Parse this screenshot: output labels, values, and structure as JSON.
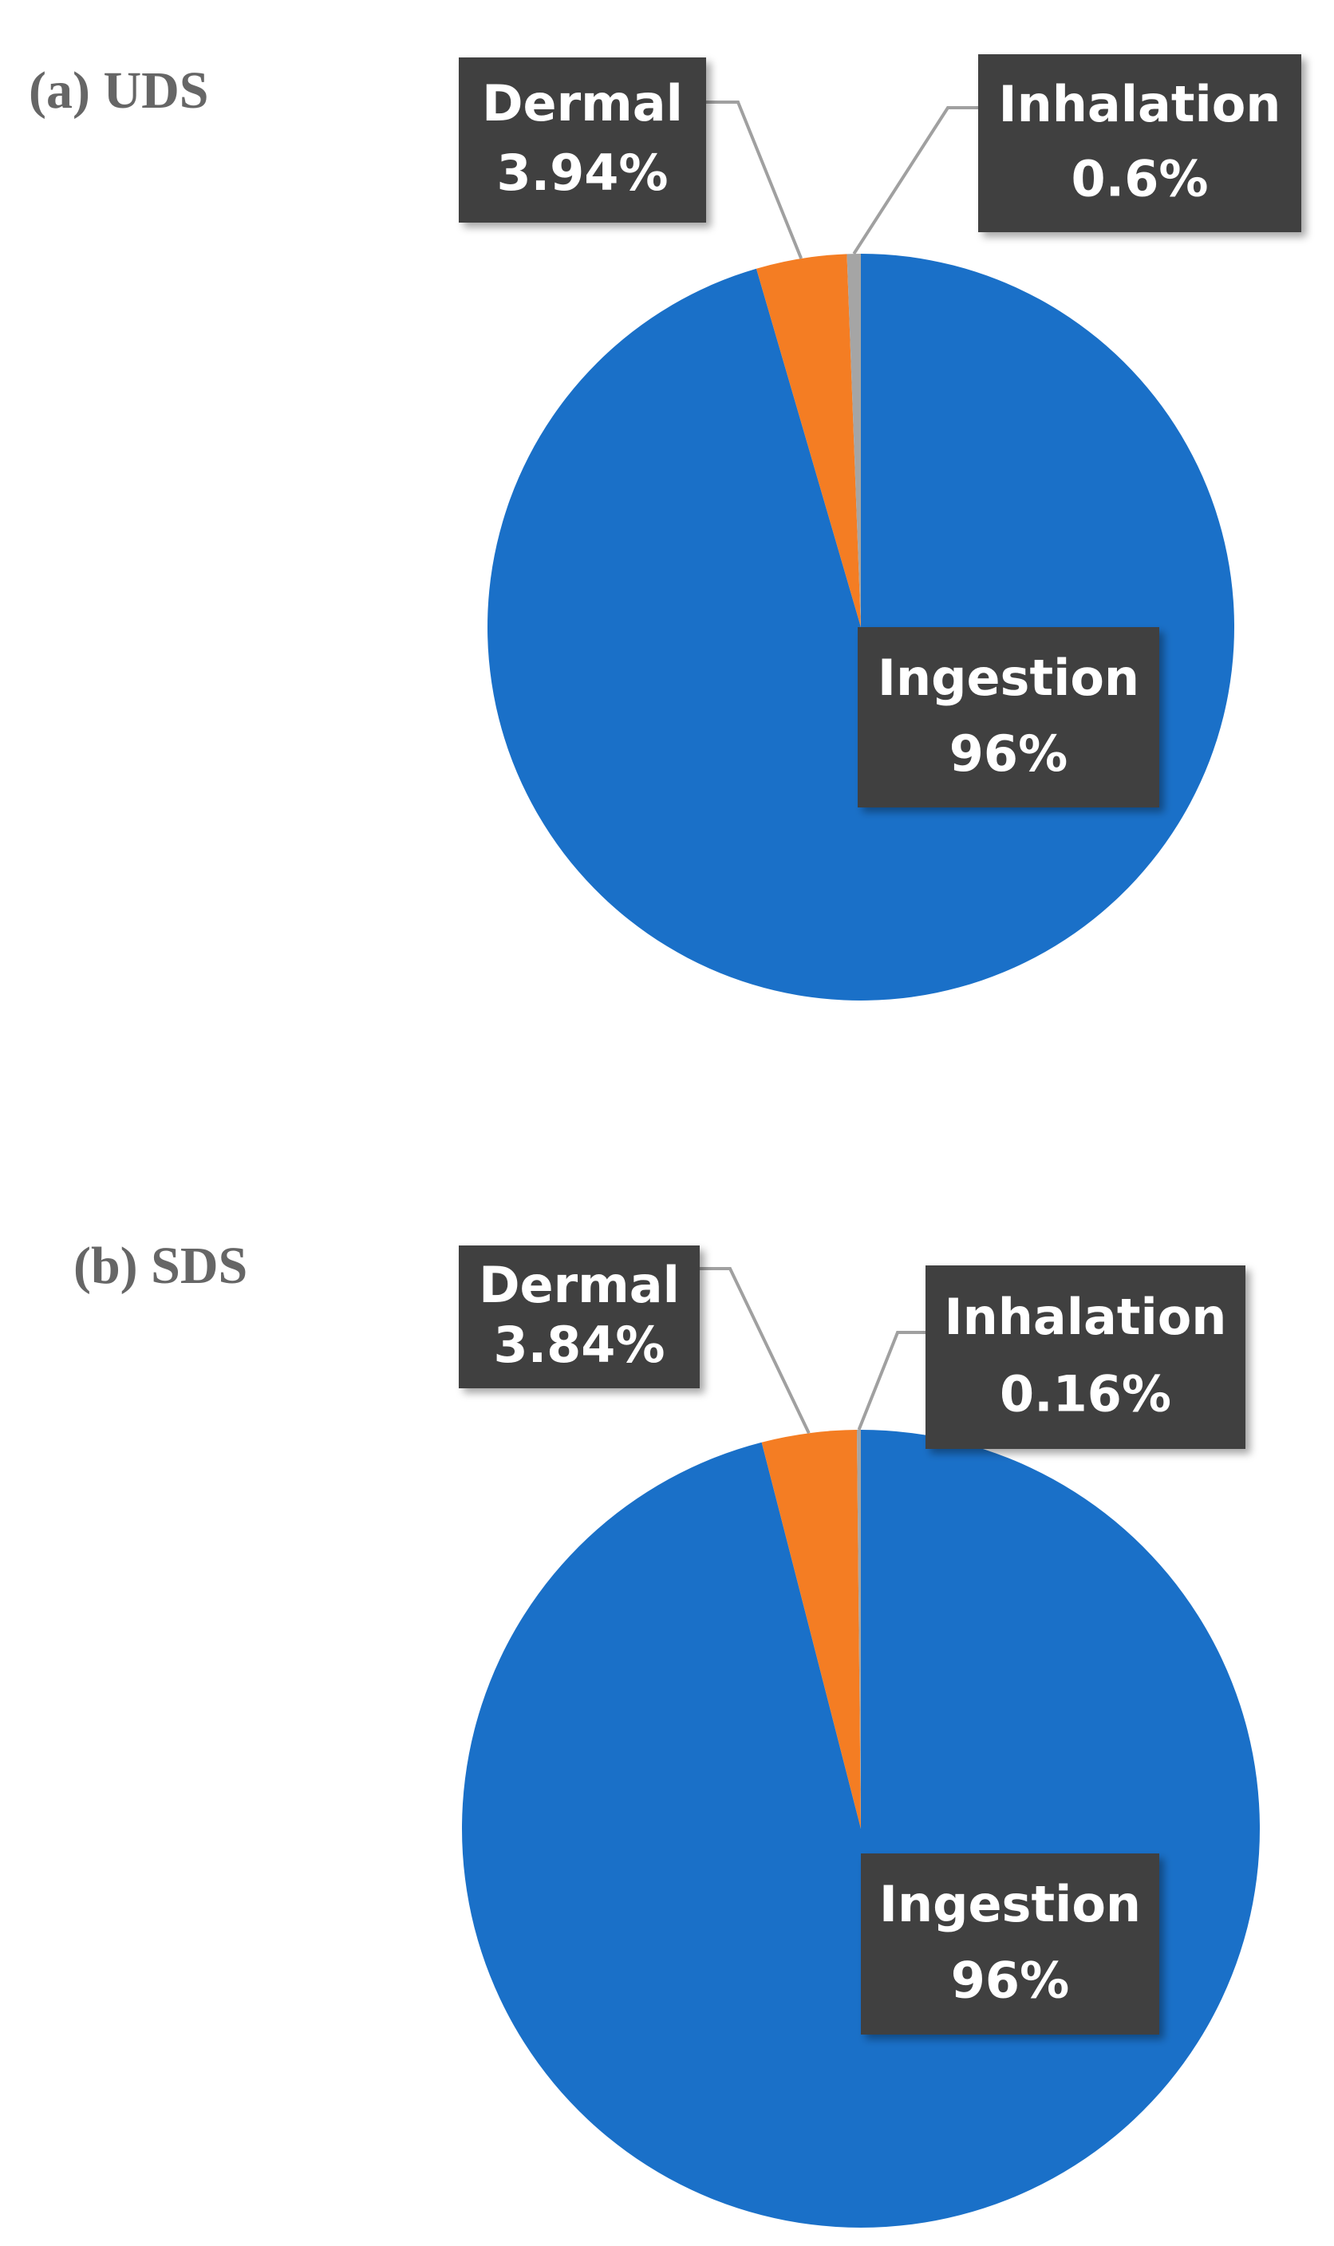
{
  "chart_data": [
    {
      "type": "pie",
      "title": "(a) UDS",
      "categories": [
        "Ingestion",
        "Dermal",
        "Inhalation"
      ],
      "values": [
        96,
        3.94,
        0.6
      ],
      "value_labels": [
        "96%",
        "3.94%",
        "0.6%"
      ],
      "colors": [
        "#1a70c8",
        "#f47d23",
        "#a5a5a5"
      ]
    },
    {
      "type": "pie",
      "title": "(b) SDS",
      "categories": [
        "Ingestion",
        "Dermal",
        "Inhalation"
      ],
      "values": [
        96,
        3.84,
        0.16
      ],
      "value_labels": [
        "96%",
        "3.84%",
        "0.16%"
      ],
      "colors": [
        "#1a70c8",
        "#f47d23",
        "#a5a5a5"
      ]
    }
  ]
}
